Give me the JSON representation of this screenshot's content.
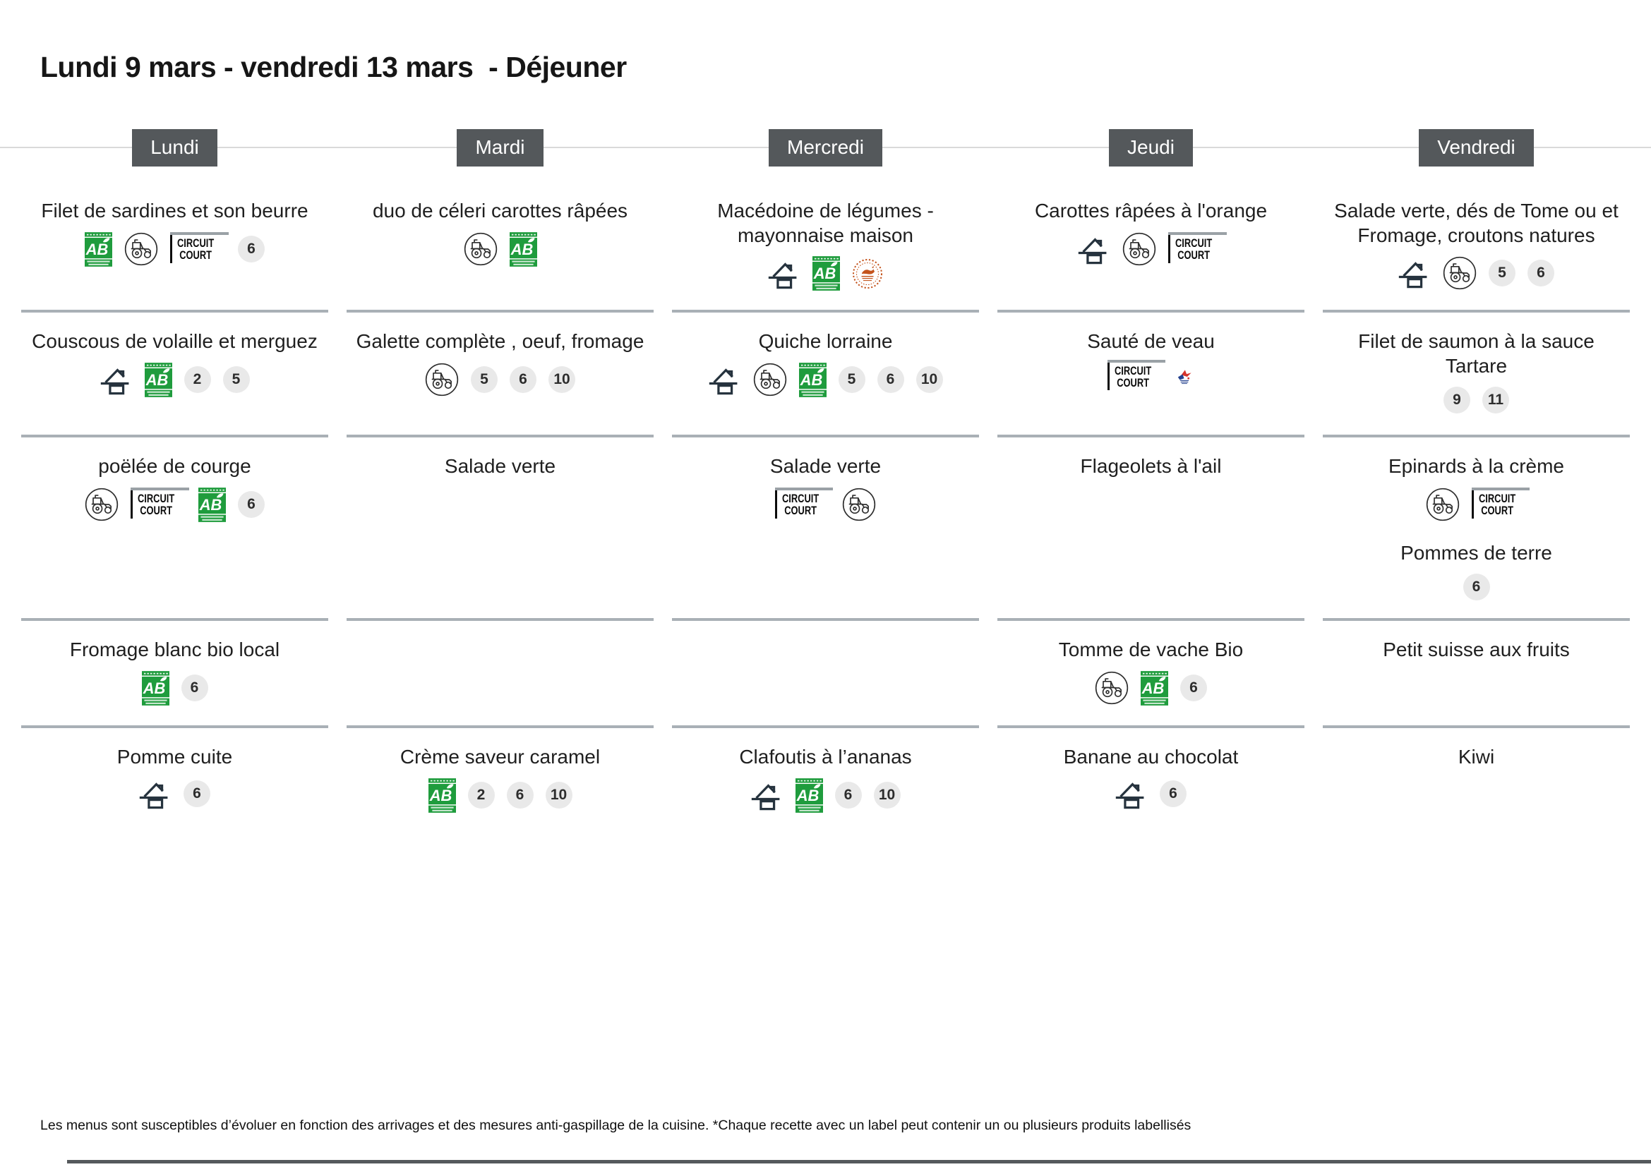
{
  "page_title": "Lundi 9 mars - vendredi 13 mars  - Déjeuner",
  "footer_note": "Les menus sont susceptibles d’évoluer en fonction des arrivages et des mesures anti-gaspillage de la cuisine. *Chaque recette avec un label peut contenir un ou plusieurs produits labellisés",
  "icon_text": {
    "circuit_court": [
      "CIRCUIT",
      "COURT"
    ],
    "ab_letters": "AB"
  },
  "icon_legend": {
    "ab": "agriculture-biologique-label",
    "tractor": "producteur-local",
    "circuit-court": "circuit-court",
    "house": "fait-maison",
    "orange-seal": "label-rond-orange",
    "france-seal": "origine-france"
  },
  "colors": {
    "header_bg": "#54585b",
    "separator": "#a9b0b6",
    "week_line": "#d9d9d9",
    "ab_green": "#1f9c3d",
    "icon_dark": "#26333e",
    "badge_bg": "#e9e9e9",
    "badge_text": "#2d2d2d",
    "text_dark": "#1f1f1f",
    "orange_seal": "#c4541d",
    "france_blue": "#24418e",
    "france_red": "#d6342c",
    "bottom_bar": "#55595c"
  },
  "columns": [
    {
      "day": "Lundi",
      "courses": [
        {
          "items": [
            {
              "name": "Filet de sardines et son beurre",
              "labels": [
                "ab",
                "tractor",
                "circuit-court"
              ],
              "allergens": [
                6
              ]
            }
          ]
        },
        {
          "items": [
            {
              "name": "Couscous de volaille et merguez",
              "labels": [
                "house",
                "ab"
              ],
              "allergens": [
                2,
                5
              ]
            }
          ]
        },
        {
          "items": [
            {
              "name": "poëlée de courge",
              "labels": [
                "tractor",
                "circuit-court",
                "ab"
              ],
              "allergens": [
                6
              ]
            }
          ]
        },
        {
          "items": [
            {
              "name": "Fromage blanc bio local",
              "labels": [
                "ab"
              ],
              "allergens": [
                6
              ]
            }
          ]
        },
        {
          "items": [
            {
              "name": "Pomme cuite",
              "labels": [
                "house"
              ],
              "allergens": [
                6
              ]
            }
          ]
        }
      ]
    },
    {
      "day": "Mardi",
      "courses": [
        {
          "items": [
            {
              "name": "duo de céleri carottes râpées",
              "labels": [
                "tractor",
                "ab"
              ],
              "allergens": []
            }
          ]
        },
        {
          "items": [
            {
              "name": "Galette complète , oeuf, fromage",
              "labels": [
                "tractor"
              ],
              "allergens": [
                5,
                6,
                10
              ]
            }
          ]
        },
        {
          "items": [
            {
              "name": "Salade verte",
              "labels": [],
              "allergens": []
            }
          ]
        },
        {
          "items": []
        },
        {
          "items": [
            {
              "name": "Crème saveur caramel",
              "labels": [
                "ab"
              ],
              "allergens": [
                2,
                6,
                10
              ]
            }
          ]
        }
      ]
    },
    {
      "day": "Mercredi",
      "courses": [
        {
          "items": [
            {
              "name": "Macédoine de légumes - mayonnaise maison",
              "labels": [
                "house",
                "ab",
                "orange-seal"
              ],
              "allergens": []
            }
          ]
        },
        {
          "items": [
            {
              "name": "Quiche lorraine",
              "labels": [
                "house",
                "tractor",
                "ab"
              ],
              "allergens": [
                5,
                6,
                10
              ]
            }
          ]
        },
        {
          "items": [
            {
              "name": "Salade verte",
              "labels": [
                "circuit-court",
                "tractor"
              ],
              "allergens": []
            }
          ]
        },
        {
          "items": []
        },
        {
          "items": [
            {
              "name": "Clafoutis à l’ananas",
              "labels": [
                "house",
                "ab"
              ],
              "allergens": [
                6,
                10
              ]
            }
          ]
        }
      ]
    },
    {
      "day": "Jeudi",
      "courses": [
        {
          "items": [
            {
              "name": "Carottes râpées à l'orange",
              "labels": [
                "house",
                "tractor",
                "circuit-court"
              ],
              "allergens": []
            }
          ]
        },
        {
          "items": [
            {
              "name": "Sauté de veau",
              "labels": [
                "circuit-court",
                "france-seal"
              ],
              "allergens": []
            }
          ]
        },
        {
          "items": [
            {
              "name": "Flageolets à l'ail",
              "labels": [],
              "allergens": []
            }
          ]
        },
        {
          "items": [
            {
              "name": "Tomme de vache Bio",
              "labels": [
                "tractor",
                "ab"
              ],
              "allergens": [
                6
              ]
            }
          ]
        },
        {
          "items": [
            {
              "name": "Banane au chocolat",
              "labels": [
                "house"
              ],
              "allergens": [
                6
              ]
            }
          ]
        }
      ]
    },
    {
      "day": "Vendredi",
      "courses": [
        {
          "items": [
            {
              "name": "Salade verte, dés de Tome ou et Fromage, croutons natures",
              "labels": [
                "house",
                "tractor"
              ],
              "allergens": [
                5,
                6
              ]
            }
          ]
        },
        {
          "items": [
            {
              "name": "Filet de saumon à la sauce Tartare",
              "labels": [],
              "allergens": [
                9,
                11
              ]
            }
          ]
        },
        {
          "items": [
            {
              "name": "Epinards à la crème",
              "labels": [
                "tractor",
                "circuit-court"
              ],
              "allergens": []
            },
            {
              "name": "Pommes de terre",
              "labels": [],
              "allergens": [
                6
              ]
            }
          ]
        },
        {
          "items": [
            {
              "name": "Petit suisse aux fruits",
              "labels": [],
              "allergens": []
            }
          ]
        },
        {
          "items": [
            {
              "name": "Kiwi",
              "labels": [],
              "allergens": []
            }
          ]
        }
      ]
    }
  ]
}
